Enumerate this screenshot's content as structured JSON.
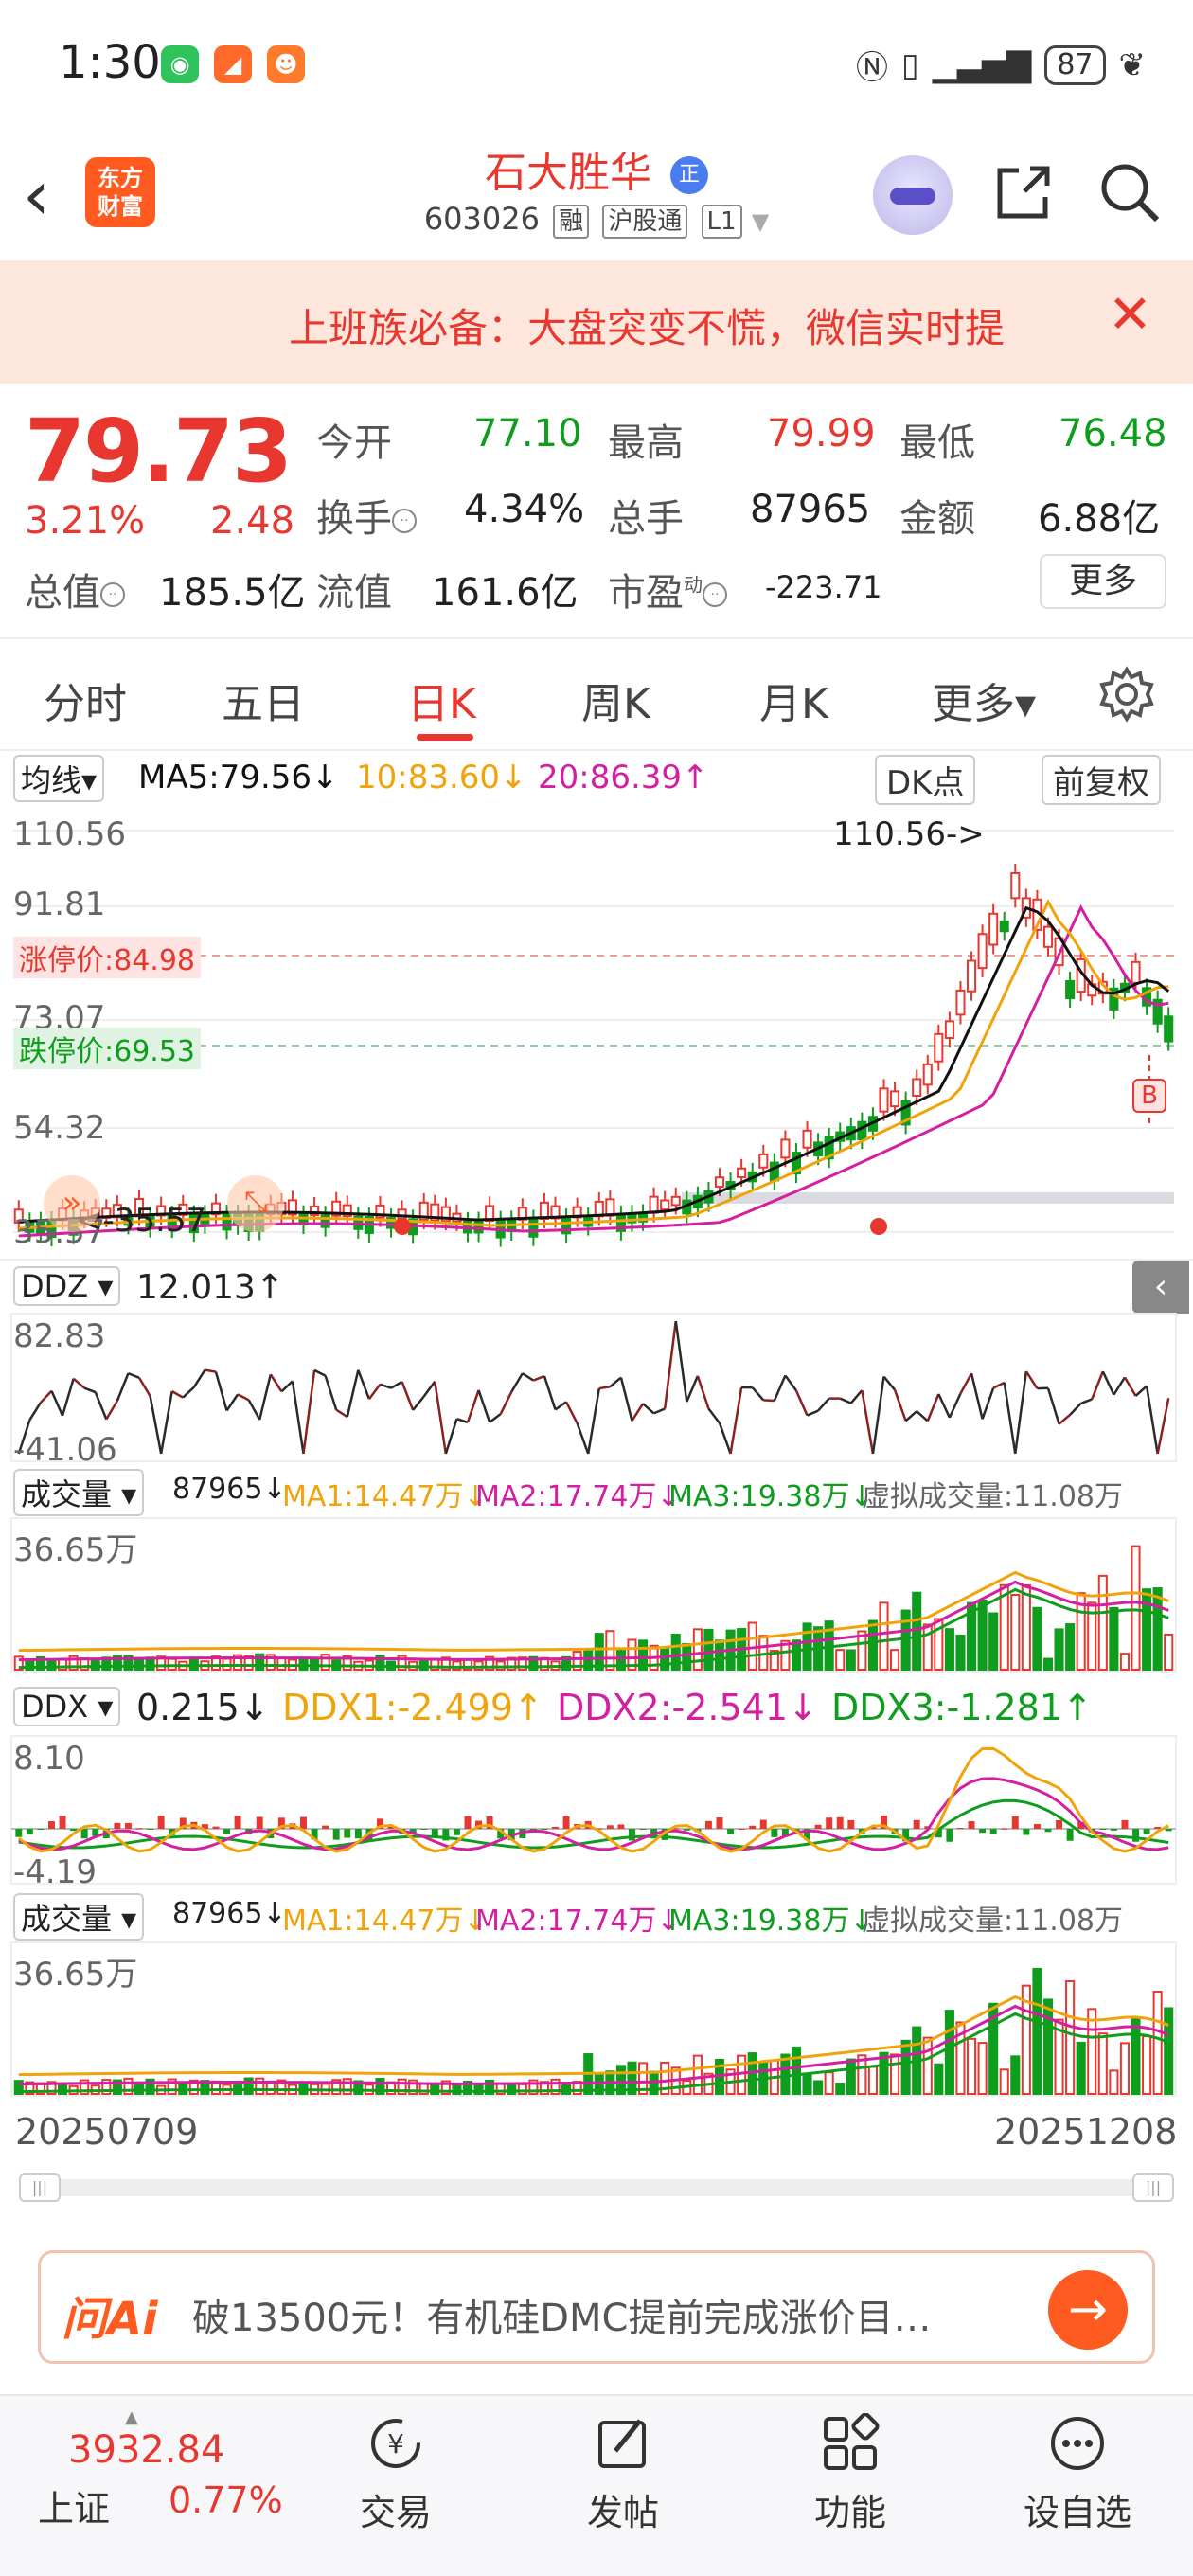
{
  "status": {
    "time": "1:30",
    "battery": "87",
    "apps": [
      {
        "name": "chat-app-icon",
        "color": "#2fc45b"
      },
      {
        "name": "video-app-icon",
        "color": "#ff6a2a"
      },
      {
        "name": "game-app-icon",
        "color": "#ff7b2c"
      }
    ]
  },
  "header": {
    "back_label": "<",
    "logo_line1": "东方",
    "logo_line2": "财富",
    "stock_name": "石大胜华",
    "stock_tag": "正",
    "code": "603026",
    "badges": [
      "融",
      "沪股通",
      "L1"
    ]
  },
  "banner": {
    "text": "上班族必备：大盘突变不慌，微信实时提",
    "close_label": "✕"
  },
  "quote": {
    "price": "79.73",
    "change_pct": "3.21%",
    "change_amt": "2.48",
    "open_label": "今开",
    "open": "77.10",
    "high_label": "最高",
    "high": "79.99",
    "low_label": "最低",
    "low": "76.48",
    "turnover_label": "换手",
    "turnover": "4.34%",
    "volume_label": "总手",
    "volume": "87965",
    "amount_label": "金额",
    "amount": "6.88亿",
    "mktcap_label": "总值",
    "mktcap": "185.5亿",
    "float_label": "流值",
    "float": "161.6亿",
    "pe_label": "市盈",
    "pe_sup": "动",
    "pe": "-223.71",
    "more_label": "更多"
  },
  "tabs": {
    "items": [
      "分时",
      "五日",
      "日K",
      "周K",
      "月K",
      "更多▾"
    ],
    "active": 2
  },
  "kline": {
    "ma_selector": "均线▾",
    "ma5": "MA5:79.56↓",
    "ma10": "10:83.60↓",
    "ma20": "20:86.39↑",
    "dk_label": "DK点",
    "adj_label": "前复权",
    "y_labels": [
      "110.56",
      "91.81",
      "73.07",
      "54.32",
      "35.57"
    ],
    "limit_up": "涨停价:84.98",
    "limit_down": "跌停价:69.53",
    "max_annot": "110.56->",
    "min_annot": "<-35.57",
    "buy_mark": "B"
  },
  "ddz": {
    "selector": "DDZ ▾",
    "value": "12.013↑",
    "top": "82.83",
    "bottom": "-41.06"
  },
  "vol1": {
    "selector": "成交量 ▾",
    "value": "87965↓",
    "ma1": "MA1:14.47万↓",
    "ma2": "MA2:17.74万↓",
    "ma3": "MA3:19.38万↓",
    "virtual": "虚拟成交量:11.08万",
    "top": "36.65万"
  },
  "ddx": {
    "selector": "DDX ▾",
    "value": "0.215↓",
    "ddx1": "DDX1:-2.499↑",
    "ddx2": "DDX2:-2.541↓",
    "ddx3": "DDX3:-1.281↑",
    "top": "8.10",
    "bottom": "-4.19"
  },
  "vol2": {
    "selector": "成交量 ▾",
    "value": "87965↓",
    "ma1": "MA1:14.47万↓",
    "ma2": "MA2:17.74万↓",
    "ma3": "MA3:19.38万↓",
    "virtual": "虚拟成交量:11.08万",
    "top": "36.65万"
  },
  "dates": {
    "start": "20250709",
    "end": "20251208"
  },
  "askai": {
    "brand": "问Ai",
    "question": "破13500元！有机硅DMC提前完成涨价目…"
  },
  "bottom": {
    "index_value": "3932.84",
    "index_name": "上证",
    "index_pct": "0.77%",
    "items": [
      "交易",
      "发帖",
      "功能",
      "设自选"
    ]
  },
  "colors": {
    "up": "#e8372e",
    "down": "#0f9d1e",
    "ma5": "#111111",
    "ma10": "#f0a30a",
    "ma20": "#d31fa0",
    "accent": "#ff5a1f"
  }
}
